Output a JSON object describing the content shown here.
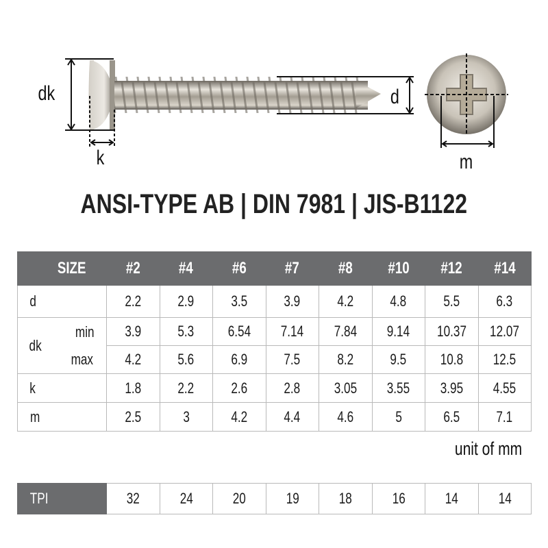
{
  "diagram": {
    "labels": {
      "dk": "dk",
      "k": "k",
      "d": "d",
      "m": "m"
    }
  },
  "title": "ANSI-TYPE AB | DIN 7981 | JIS-B1122",
  "table": {
    "header_label": "SIZE",
    "sizes": [
      "#2",
      "#4",
      "#6",
      "#7",
      "#8",
      "#10",
      "#12",
      "#14"
    ],
    "rows": [
      {
        "label": "d",
        "sub": "",
        "values": [
          "2.2",
          "2.9",
          "3.5",
          "3.9",
          "4.2",
          "4.8",
          "5.5",
          "6.3"
        ]
      },
      {
        "label": "dk",
        "sub": "min",
        "values": [
          "3.9",
          "5.3",
          "6.54",
          "7.14",
          "7.84",
          "9.14",
          "10.37",
          "12.07"
        ]
      },
      {
        "label": "",
        "sub": "max",
        "values": [
          "4.2",
          "5.6",
          "6.9",
          "7.5",
          "8.2",
          "9.5",
          "10.8",
          "12.5"
        ]
      },
      {
        "label": "k",
        "sub": "",
        "values": [
          "1.8",
          "2.2",
          "2.6",
          "2.8",
          "3.05",
          "3.55",
          "3.95",
          "4.55"
        ]
      },
      {
        "label": "m",
        "sub": "",
        "values": [
          "2.5",
          "3",
          "4.2",
          "4.4",
          "4.6",
          "5",
          "6.5",
          "7.1"
        ]
      }
    ],
    "unit_note": "unit of mm"
  },
  "tpi": {
    "label": "TPI",
    "values": [
      "32",
      "24",
      "20",
      "19",
      "18",
      "16",
      "14",
      "14"
    ]
  },
  "colors": {
    "header_bg": "#6b6c6e",
    "grid": "#b9b9b9",
    "metal": "#b8b2a6"
  }
}
